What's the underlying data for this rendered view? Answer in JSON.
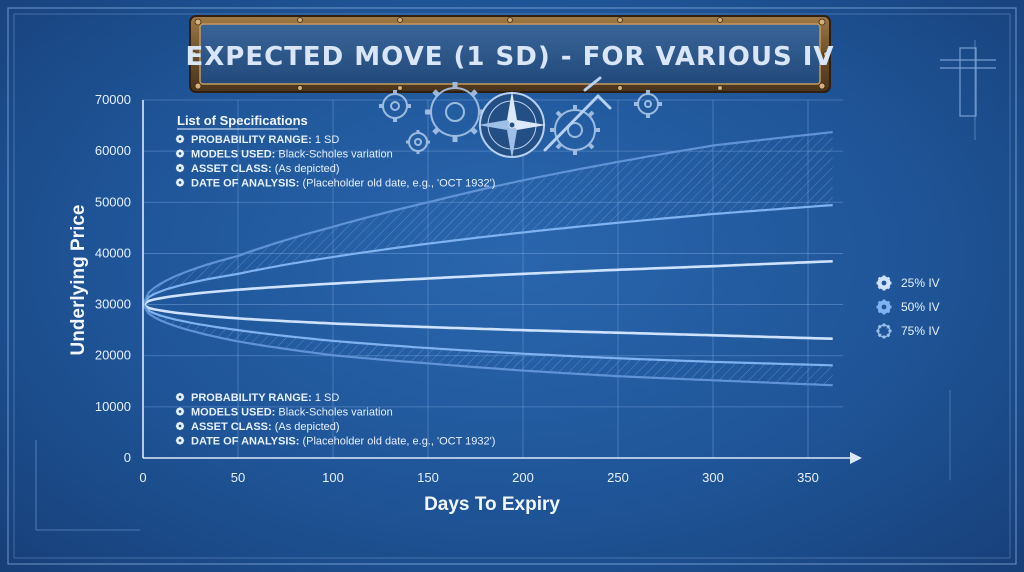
{
  "chart_data": {
    "type": "line",
    "title": "EXPECTED MOVE (1 SD) - FOR VARIOUS IV",
    "xlabel": "Days To Expiry",
    "ylabel": "Underlying Price",
    "xlim": [
      0,
      365
    ],
    "ylim": [
      0,
      70000
    ],
    "xticks": [
      "0",
      "50",
      "100",
      "150",
      "200",
      "250",
      "300",
      "350"
    ],
    "yticks": [
      "0",
      "10000",
      "20000",
      "30000",
      "40000",
      "50000",
      "60000",
      "70000"
    ],
    "grid": true,
    "legend_position": "right",
    "spot_price": 30000,
    "series": [
      {
        "name": "25% IV",
        "iv": 0.25,
        "color": "#cfe3ff",
        "x": [
          0,
          50,
          100,
          150,
          200,
          250,
          300,
          365
        ],
        "upper": [
          30000,
          32900,
          34100,
          35100,
          36000,
          36800,
          37500,
          38500
        ],
        "lower": [
          30000,
          27300,
          26300,
          25600,
          25000,
          24500,
          24000,
          23300
        ]
      },
      {
        "name": "50% IV",
        "iv": 0.5,
        "color": "#7fb2f0",
        "x": [
          0,
          50,
          100,
          150,
          200,
          250,
          300,
          365
        ],
        "upper": [
          30000,
          36000,
          39300,
          41900,
          44100,
          46000,
          47700,
          49500
        ],
        "lower": [
          30000,
          25000,
          22900,
          21500,
          20400,
          19500,
          18800,
          18100
        ]
      },
      {
        "name": "75% IV",
        "iv": 0.75,
        "color": "#5f93d6",
        "x": [
          0,
          50,
          100,
          150,
          200,
          250,
          300,
          365
        ],
        "upper": [
          30000,
          39500,
          45200,
          50000,
          54300,
          57900,
          61100,
          63800
        ],
        "lower": [
          30000,
          22800,
          20100,
          18500,
          17100,
          16000,
          15200,
          14200
        ]
      }
    ]
  },
  "specs_top": {
    "heading": "List of Specifications",
    "items": [
      {
        "key": "PROBABILITY RANGE:",
        "value": "1 SD"
      },
      {
        "key": "MODELS USED:",
        "value": "Black-Scholes variation"
      },
      {
        "key": "ASSET CLASS:",
        "value": "(As depicted)"
      },
      {
        "key": "DATE OF ANALYSIS:",
        "value": "(Placeholder old date, e.g., 'OCT 1932')"
      }
    ]
  },
  "specs_bottom": {
    "items": [
      {
        "key": "PROBABILITY RANGE:",
        "value": "1 SD"
      },
      {
        "key": "MODELS USED:",
        "value": "Black-Scholes variation"
      },
      {
        "key": "ASSET CLASS:",
        "value": "(As depicted)"
      },
      {
        "key": "DATE OF ANALYSIS:",
        "value": "(Placeholder old date, e.g., 'OCT 1932')"
      }
    ]
  },
  "icons": {
    "spec_bullet": "gear-icon",
    "legend_marker": "gear-icon",
    "decoration": [
      "gear-cluster-icon",
      "compass-rose-icon",
      "caliper-icon"
    ]
  },
  "colors": {
    "background": "#1f5598",
    "grid": "#6f9ed8",
    "axis": "#dce9fb",
    "title_plate": "#7a5b34",
    "title_plate_inner": "#2c4f7e"
  }
}
